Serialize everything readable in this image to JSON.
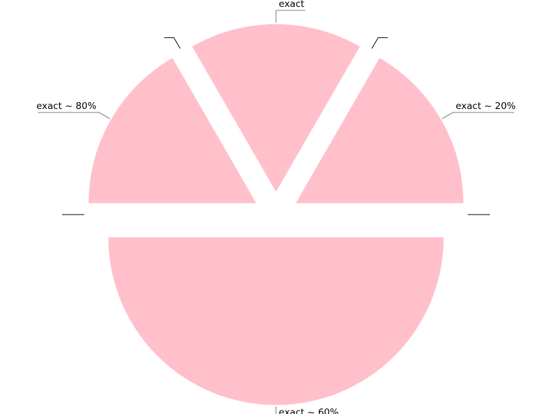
{
  "chart_data": {
    "type": "pie",
    "title": "",
    "color": "#ffc0cb",
    "slices": [
      {
        "label": "exact ~ 20%",
        "value": 60
      },
      {
        "label": "",
        "value": 0
      },
      {
        "label": "exact",
        "value": 60
      },
      {
        "label": "",
        "value": 0
      },
      {
        "label": "exact ~ 80%",
        "value": 60
      },
      {
        "label": "",
        "value": 0
      },
      {
        "label": "exact ~ 60%",
        "value": 180
      },
      {
        "label": "",
        "value": 0
      }
    ]
  }
}
